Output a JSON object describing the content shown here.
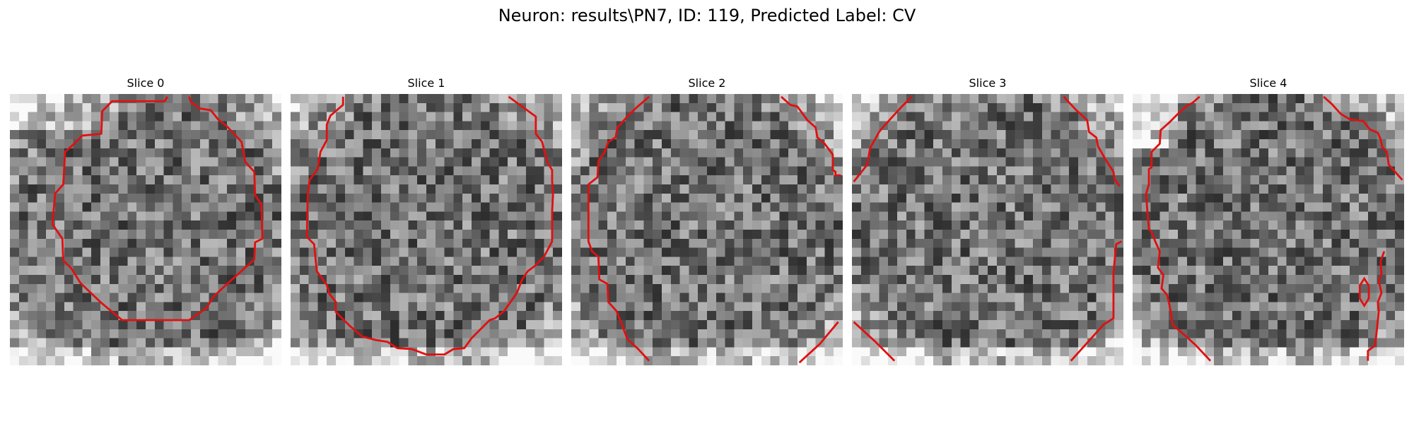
{
  "figure": {
    "title": "Neuron: results\\PN7, ID: 119, Predicted Label: CV",
    "contour_color": "#e01010"
  },
  "panels": [
    {
      "title": "Slice 0"
    },
    {
      "title": "Slice 1"
    },
    {
      "title": "Slice 2"
    },
    {
      "title": "Slice 3"
    },
    {
      "title": "Slice 4"
    }
  ]
}
